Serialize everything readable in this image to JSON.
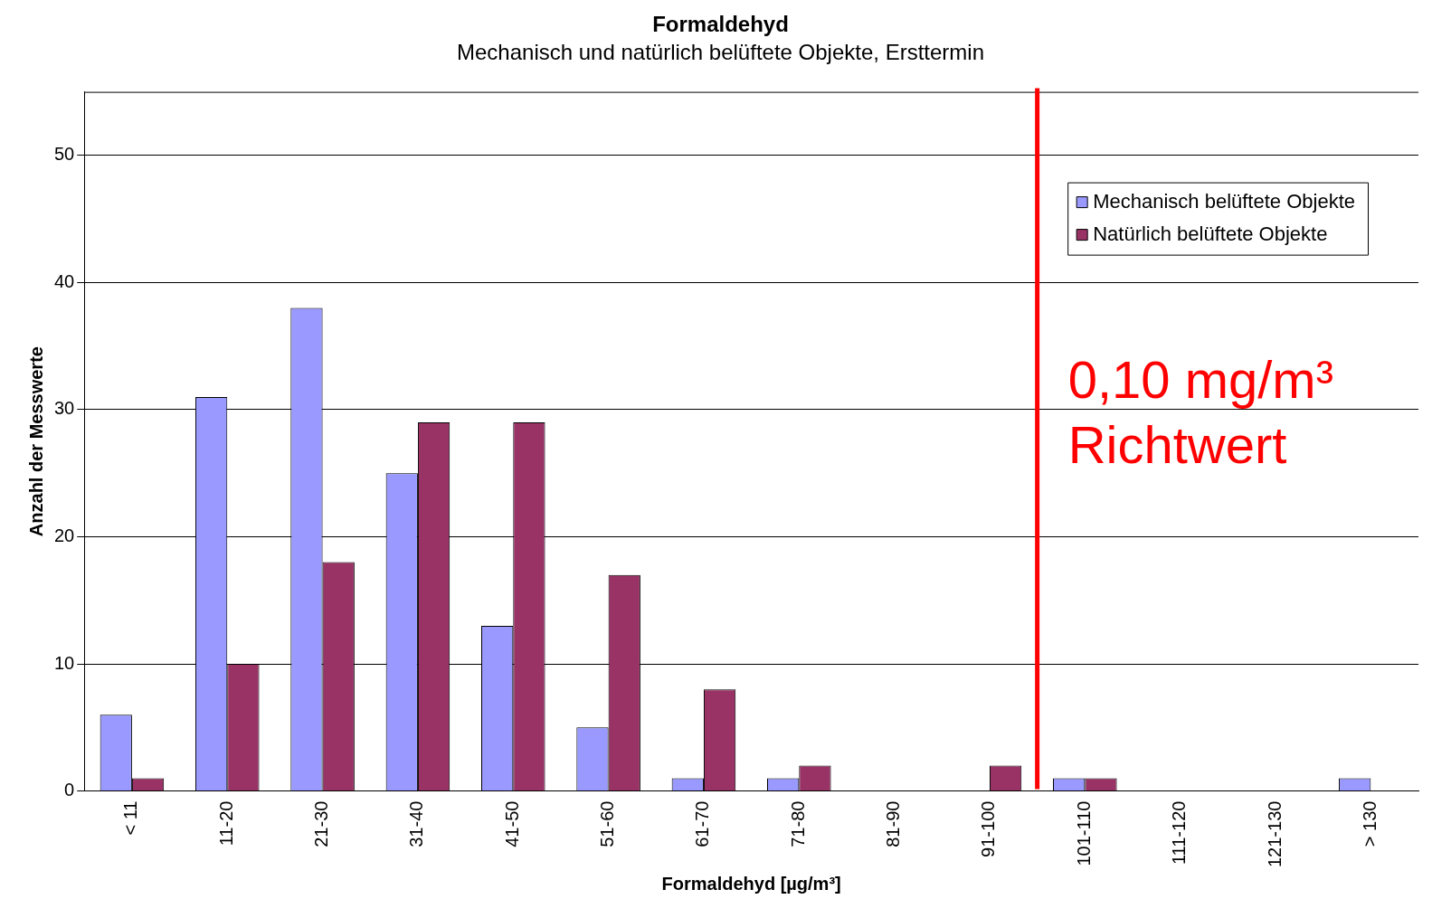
{
  "chart_data": {
    "type": "bar",
    "title": "Formaldehyd",
    "subtitle": "Mechanisch und natürlich belüftete Objekte, Ersttermin",
    "xlabel": "Formaldehyd [µg/m³]",
    "ylabel": "Anzahl der Messwerte",
    "categories": [
      "< 11",
      "11-20",
      "21-30",
      "31-40",
      "41-50",
      "51-60",
      "61-70",
      "71-80",
      "81-90",
      "91-100",
      "101-110",
      "111-120",
      "121-130",
      "> 130"
    ],
    "series": [
      {
        "name": "Mechanisch belüftete Objekte",
        "color": "#9999ff",
        "values": [
          6,
          31,
          38,
          25,
          13,
          5,
          1,
          1,
          0,
          0,
          1,
          0,
          0,
          1
        ]
      },
      {
        "name": "Natürlich belüftete Objekte",
        "color": "#993366",
        "values": [
          1,
          10,
          18,
          29,
          29,
          17,
          8,
          2,
          0,
          2,
          1,
          0,
          0,
          0
        ]
      }
    ],
    "ylim": [
      0,
      55
    ],
    "yticks": [
      0,
      10,
      20,
      30,
      40,
      50
    ],
    "grid": "y",
    "legend": "top right",
    "ref_lines": [
      {
        "axis": "x",
        "value": "101-110",
        "label": "0,10 mg/m³\nRichtwert",
        "color": "#ff0000"
      }
    ]
  }
}
